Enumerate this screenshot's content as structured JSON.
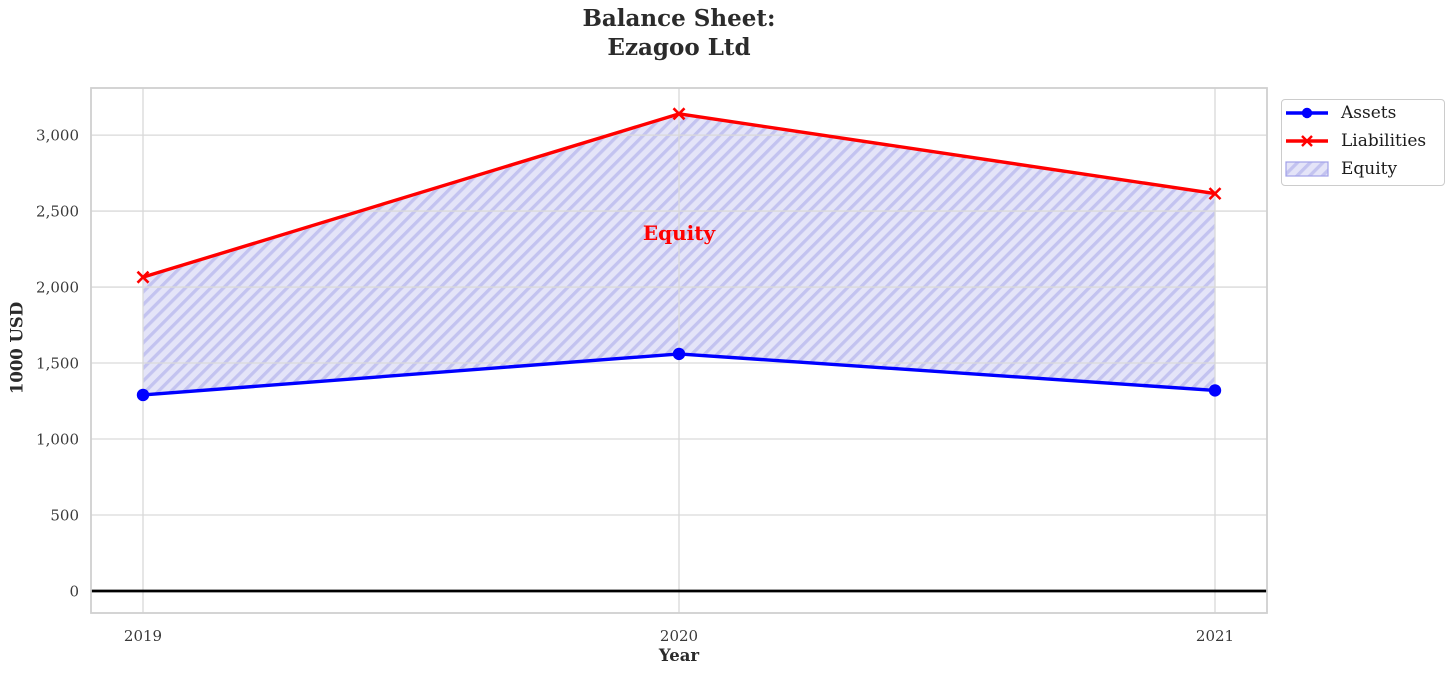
{
  "chart_data": {
    "type": "line",
    "title_line1": "Balance Sheet:",
    "title_line2": "Ezagoo Ltd",
    "xlabel": "Year",
    "ylabel": "1000 USD",
    "categories": [
      "2019",
      "2020",
      "2021"
    ],
    "series": [
      {
        "name": "Assets",
        "values": [
          1290,
          1560,
          1320
        ],
        "color": "#0000ff",
        "marker": "circle",
        "line_width": 3.4
      },
      {
        "name": "Liabilities",
        "values": [
          2065,
          3140,
          2615
        ],
        "color": "#ff0000",
        "marker": "x",
        "line_width": 3.4
      }
    ],
    "area": {
      "name": "Equity",
      "between": [
        "Assets",
        "Liabilities"
      ],
      "label": "Equity",
      "label_color": "#ff0000",
      "label_x": "2020",
      "label_y_value": 2355,
      "fill_color": "#e4e4f8",
      "hatch_color": "#c3c3f0",
      "edge_color": "#a2a2e8"
    },
    "yticks": [
      0,
      500,
      1000,
      1500,
      2000,
      2500,
      3000
    ],
    "ytick_labels": [
      "0",
      "500",
      "1,000",
      "1,500",
      "2,000",
      "2,500",
      "3,000"
    ],
    "ylim": [
      -145,
      3310
    ],
    "grid": true,
    "legend_position": "outside-top-right",
    "zero_line": {
      "y": 0,
      "color": "#000000"
    },
    "legend": {
      "entries": [
        {
          "label": "Assets"
        },
        {
          "label": "Liabilities"
        },
        {
          "label": "Equity"
        }
      ]
    },
    "colors": {
      "grid": "#d9d9d9",
      "spine": "#d0d0d0",
      "tick_text": "#3a3a3a",
      "title_text": "#2b2b2b"
    }
  }
}
